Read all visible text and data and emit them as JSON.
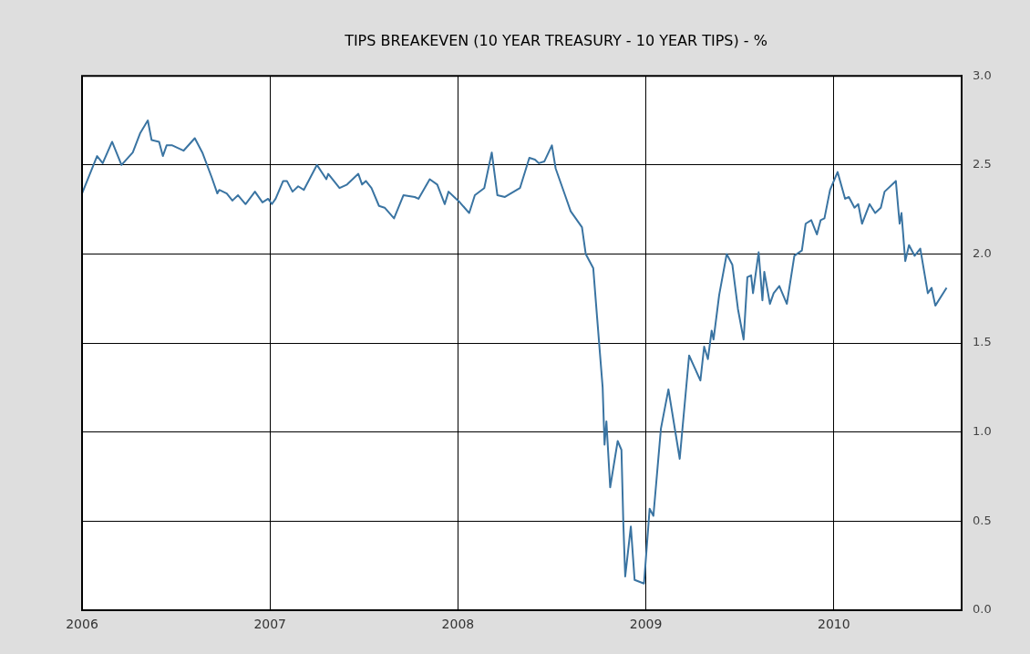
{
  "chart_data": {
    "type": "line",
    "title": "TIPS BREAKEVEN (10 YEAR TREASURY - 10 YEAR TIPS) - %",
    "x": [
      2006.0,
      2006.08,
      2006.11,
      2006.16,
      2006.21,
      2006.27,
      2006.31,
      2006.35,
      2006.37,
      2006.41,
      2006.43,
      2006.45,
      2006.48,
      2006.54,
      2006.6,
      2006.64,
      2006.69,
      2006.72,
      2006.73,
      2006.77,
      2006.8,
      2006.83,
      2006.87,
      2006.92,
      2006.96,
      2006.99,
      2007.01,
      2007.03,
      2007.07,
      2007.09,
      2007.12,
      2007.15,
      2007.18,
      2007.25,
      2007.3,
      2007.31,
      2007.37,
      2007.41,
      2007.47,
      2007.49,
      2007.51,
      2007.54,
      2007.58,
      2007.61,
      2007.66,
      2007.71,
      2007.77,
      2007.79,
      2007.85,
      2007.89,
      2007.93,
      2007.95,
      2007.98,
      2008.01,
      2008.06,
      2008.09,
      2008.14,
      2008.18,
      2008.21,
      2008.25,
      2008.33,
      2008.38,
      2008.41,
      2008.43,
      2008.46,
      2008.5,
      2008.52,
      2008.57,
      2008.6,
      2008.66,
      2008.68,
      2008.72,
      2008.74,
      2008.77,
      2008.78,
      2008.79,
      2008.81,
      2008.85,
      2008.87,
      2008.88,
      2008.89,
      2008.92,
      2008.94,
      2008.99,
      2009.02,
      2009.04,
      2009.08,
      2009.12,
      2009.18,
      2009.23,
      2009.29,
      2009.31,
      2009.33,
      2009.35,
      2009.36,
      2009.39,
      2009.43,
      2009.46,
      2009.49,
      2009.52,
      2009.54,
      2009.56,
      2009.57,
      2009.6,
      2009.62,
      2009.63,
      2009.66,
      2009.68,
      2009.71,
      2009.75,
      2009.79,
      2009.83,
      2009.85,
      2009.88,
      2009.91,
      2009.93,
      2009.95,
      2009.98,
      2010.02,
      2010.06,
      2010.08,
      2010.11,
      2010.13,
      2010.15,
      2010.19,
      2010.22,
      2010.25,
      2010.27,
      2010.33,
      2010.35,
      2010.36,
      2010.38,
      2010.4,
      2010.43,
      2010.46,
      2010.5,
      2010.52,
      2010.54,
      2010.6
    ],
    "series": [
      {
        "color": "#3a74a2",
        "values": [
          2.34,
          2.55,
          2.51,
          2.63,
          2.5,
          2.57,
          2.68,
          2.75,
          2.64,
          2.63,
          2.55,
          2.61,
          2.61,
          2.58,
          2.65,
          2.57,
          2.43,
          2.34,
          2.36,
          2.34,
          2.3,
          2.33,
          2.28,
          2.35,
          2.29,
          2.31,
          2.28,
          2.31,
          2.41,
          2.41,
          2.35,
          2.38,
          2.36,
          2.5,
          2.42,
          2.45,
          2.37,
          2.39,
          2.45,
          2.39,
          2.41,
          2.37,
          2.27,
          2.26,
          2.2,
          2.33,
          2.32,
          2.31,
          2.42,
          2.39,
          2.28,
          2.35,
          2.32,
          2.29,
          2.23,
          2.33,
          2.37,
          2.57,
          2.33,
          2.32,
          2.37,
          2.54,
          2.53,
          2.51,
          2.52,
          2.61,
          2.48,
          2.33,
          2.24,
          2.15,
          2.0,
          1.92,
          1.65,
          1.25,
          0.93,
          1.06,
          0.69,
          0.95,
          0.9,
          0.49,
          0.19,
          0.47,
          0.17,
          0.15,
          0.57,
          0.53,
          1.02,
          1.24,
          0.85,
          1.43,
          1.29,
          1.48,
          1.41,
          1.57,
          1.52,
          1.77,
          2.0,
          1.94,
          1.69,
          1.52,
          1.87,
          1.88,
          1.78,
          2.01,
          1.74,
          1.9,
          1.72,
          1.78,
          1.82,
          1.72,
          1.99,
          2.02,
          2.17,
          2.19,
          2.11,
          2.19,
          2.2,
          2.36,
          2.46,
          2.31,
          2.32,
          2.26,
          2.28,
          2.17,
          2.28,
          2.23,
          2.26,
          2.35,
          2.41,
          2.17,
          2.23,
          1.96,
          2.05,
          1.99,
          2.03,
          1.78,
          1.81,
          1.71,
          1.81
        ]
      }
    ],
    "xlim": [
      2006,
      2010.68
    ],
    "xticks": [
      2006,
      2007,
      2008,
      2009,
      2010
    ],
    "ylim": [
      0,
      3
    ],
    "yticks": [
      {
        "value": 0,
        "label": "0.0"
      },
      {
        "value": 0.5,
        "label": "0.5"
      },
      {
        "value": 1,
        "label": "1.0"
      },
      {
        "value": 1.5,
        "label": "1.5"
      },
      {
        "value": 2,
        "label": "2.0"
      },
      {
        "value": 2.5,
        "label": "2.5"
      },
      {
        "value": 3,
        "label": "3.0"
      }
    ],
    "grid": true,
    "legend": false,
    "marker": "none",
    "line_style": "solid"
  }
}
